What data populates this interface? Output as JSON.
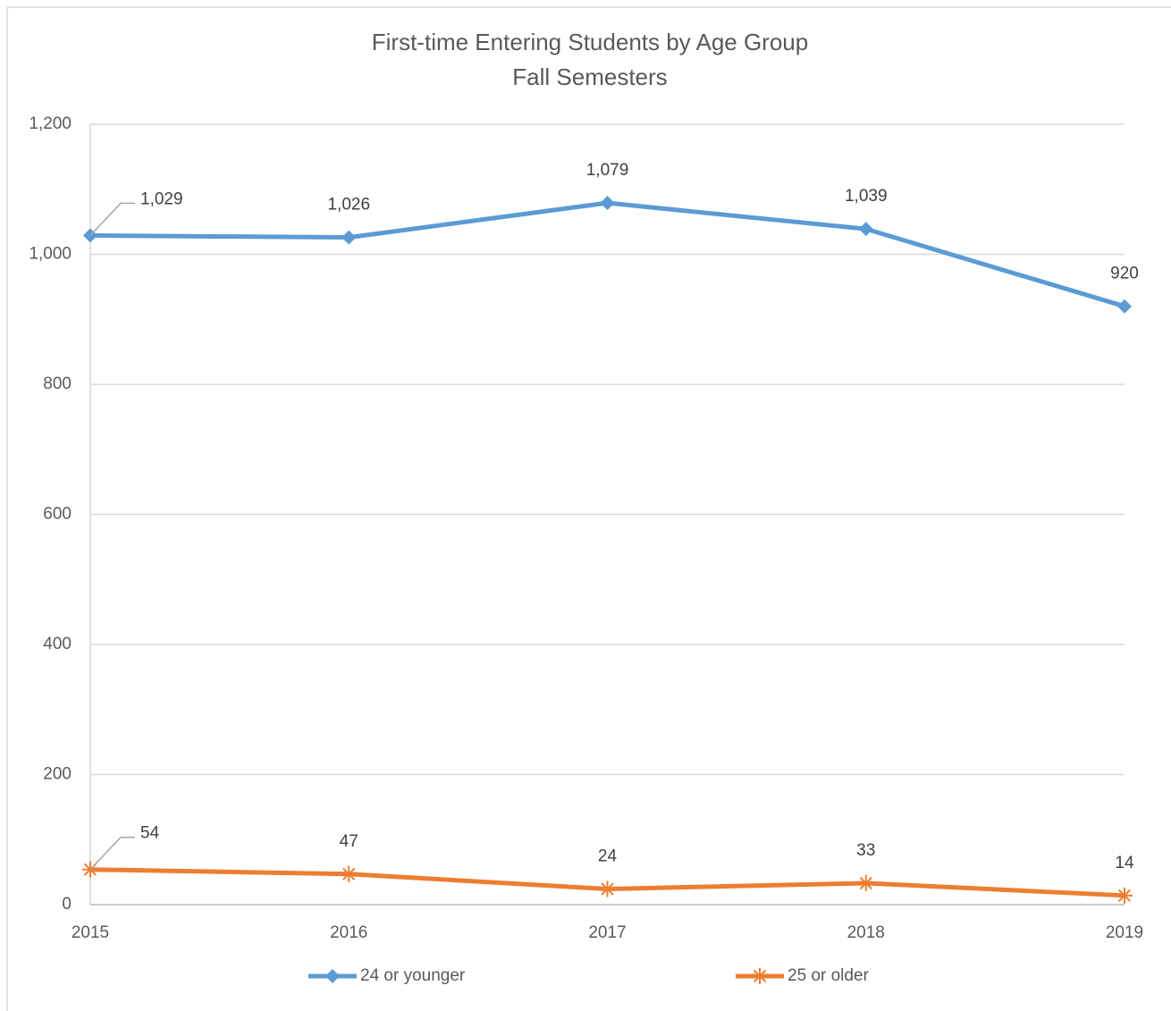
{
  "chart_data": {
    "type": "line",
    "title": "First-time Entering Students by Age Group",
    "subtitle": "Fall Semesters",
    "categories": [
      "2015",
      "2016",
      "2017",
      "2018",
      "2019"
    ],
    "series": [
      {
        "name": "24 or younger",
        "color": "#5b9bd5",
        "marker": "diamond",
        "values": [
          1029,
          1026,
          1079,
          1039,
          920
        ],
        "value_labels": [
          "1,029",
          "1,026",
          "1,079",
          "1,039",
          "920"
        ]
      },
      {
        "name": "25 or older",
        "color": "#ed7d31",
        "marker": "star",
        "values": [
          54,
          47,
          24,
          33,
          14
        ],
        "value_labels": [
          "54",
          "47",
          "24",
          "33",
          "14"
        ]
      }
    ],
    "ylim": [
      0,
      1200
    ],
    "yticks": [
      0,
      200,
      400,
      600,
      800,
      {
        "value": 1000,
        "label": "1,000"
      },
      {
        "value": 1200,
        "label": "1,200"
      }
    ],
    "grid": true,
    "legend": "bottom"
  }
}
